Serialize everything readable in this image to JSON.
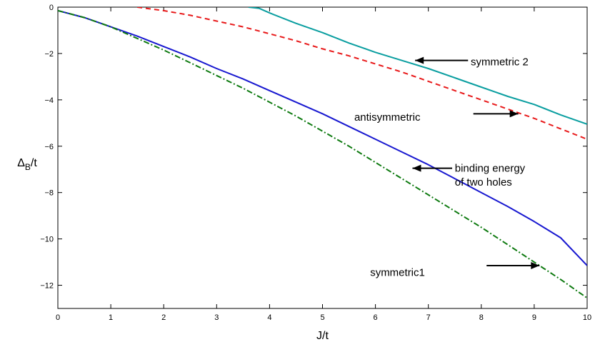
{
  "chart_data": {
    "type": "line",
    "xlabel": "J/t",
    "ylabel_main": "Δ",
    "ylabel_sub": "B",
    "ylabel_tail": "/t",
    "xlim": [
      0,
      10
    ],
    "ylim": [
      -13,
      0
    ],
    "xticks": [
      0,
      1,
      2,
      3,
      4,
      5,
      6,
      7,
      8,
      9,
      10
    ],
    "yticks": [
      0,
      -2,
      -4,
      -6,
      -8,
      -10,
      -12
    ],
    "grid": false,
    "series": [
      {
        "color": "#0a9ea0",
        "style": "solid",
        "x": [
          3.6,
          3.8,
          4.0,
          4.5,
          5,
          5.5,
          6,
          6.5,
          7,
          7.5,
          8,
          8.5,
          9,
          9.5,
          10
        ],
        "y": [
          0,
          -0.05,
          -0.25,
          -0.7,
          -1.1,
          -1.55,
          -1.95,
          -2.3,
          -2.65,
          -3.05,
          -3.45,
          -3.85,
          -4.2,
          -4.65,
          -5.05
        ]
      },
      {
        "color": "#e8191a",
        "style": "dashed",
        "x": [
          1.5,
          2,
          2.5,
          3,
          3.5,
          4,
          4.5,
          5,
          5.5,
          6,
          6.5,
          7,
          7.5,
          8,
          8.5,
          9,
          9.5,
          10
        ],
        "y": [
          0,
          -0.15,
          -0.35,
          -0.6,
          -0.85,
          -1.15,
          -1.45,
          -1.8,
          -2.1,
          -2.45,
          -2.8,
          -3.2,
          -3.6,
          -4.0,
          -4.4,
          -4.8,
          -5.25,
          -5.7
        ]
      },
      {
        "color": "#1818d0",
        "style": "solid",
        "x": [
          0,
          0.5,
          1,
          1.5,
          2,
          2.5,
          3,
          3.5,
          4,
          4.5,
          5,
          5.5,
          6,
          6.5,
          7,
          7.5,
          8,
          8.5,
          9,
          9.5,
          10
        ],
        "y": [
          -0.15,
          -0.45,
          -0.85,
          -1.25,
          -1.7,
          -2.15,
          -2.65,
          -3.1,
          -3.6,
          -4.1,
          -4.6,
          -5.15,
          -5.7,
          -6.25,
          -6.8,
          -7.4,
          -8.0,
          -8.6,
          -9.25,
          -9.95,
          -11.15
        ]
      },
      {
        "color": "#0e7a10",
        "style": "dashdot",
        "x": [
          0,
          0.5,
          1,
          1.5,
          2,
          2.5,
          3,
          3.5,
          4,
          4.5,
          5,
          5.5,
          6,
          6.5,
          7,
          7.5,
          8,
          8.5,
          9,
          9.5,
          10
        ],
        "y": [
          -0.15,
          -0.45,
          -0.85,
          -1.35,
          -1.85,
          -2.4,
          -2.95,
          -3.5,
          -4.1,
          -4.7,
          -5.35,
          -6.0,
          -6.7,
          -7.4,
          -8.1,
          -8.8,
          -9.5,
          -10.25,
          -11.0,
          -11.75,
          -12.55
        ]
      }
    ],
    "annotations": [
      {
        "text": "symmetric 2",
        "text_x": 7.8,
        "text_y": -2.35,
        "arrow_from": [
          7.75,
          -2.3
        ],
        "arrow_to": [
          6.75,
          -2.3
        ]
      },
      {
        "text": "antisymmetric",
        "text_x": 5.6,
        "text_y": -4.75,
        "arrow_from": [
          7.85,
          -4.6
        ],
        "arrow_to": [
          8.7,
          -4.6
        ]
      },
      {
        "text": "binding energy",
        "text_x": 7.5,
        "text_y": -6.95,
        "arrow_from": [
          7.45,
          -6.95
        ],
        "arrow_to": [
          6.7,
          -6.95
        ]
      },
      {
        "text": "of two holes",
        "text_x": 7.5,
        "text_y": -7.55,
        "arrow_from": null,
        "arrow_to": null
      },
      {
        "text": "symmetric1",
        "text_x": 5.9,
        "text_y": -11.45,
        "arrow_from": [
          8.1,
          -11.15
        ],
        "arrow_to": [
          9.1,
          -11.15
        ]
      }
    ]
  }
}
